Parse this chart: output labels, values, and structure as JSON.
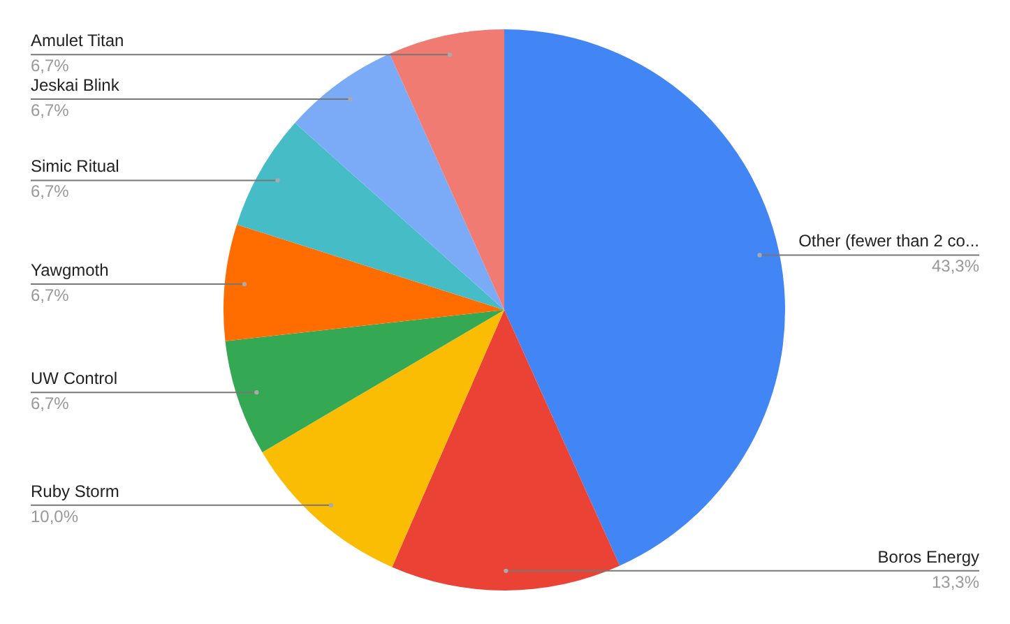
{
  "chart_data": {
    "type": "pie",
    "categories": [
      "Other (fewer than 2 co...",
      "Boros Energy",
      "Ruby Storm",
      "UW Control",
      "Yawgmoth",
      "Simic Ritual",
      "Jeskai Blink",
      "Amulet Titan"
    ],
    "values": [
      43.3,
      13.3,
      10.0,
      6.7,
      6.7,
      6.7,
      6.7,
      6.7
    ],
    "value_labels": [
      "43,3%",
      "13,3%",
      "10,0%",
      "6,7%",
      "6,7%",
      "6,7%",
      "6,7%",
      "6,7%"
    ],
    "colors": [
      "#4285f4",
      "#ea4335",
      "#fbbc04",
      "#34a853",
      "#ff6d01",
      "#46bdc6",
      "#7baaf7",
      "#f07b72"
    ]
  }
}
